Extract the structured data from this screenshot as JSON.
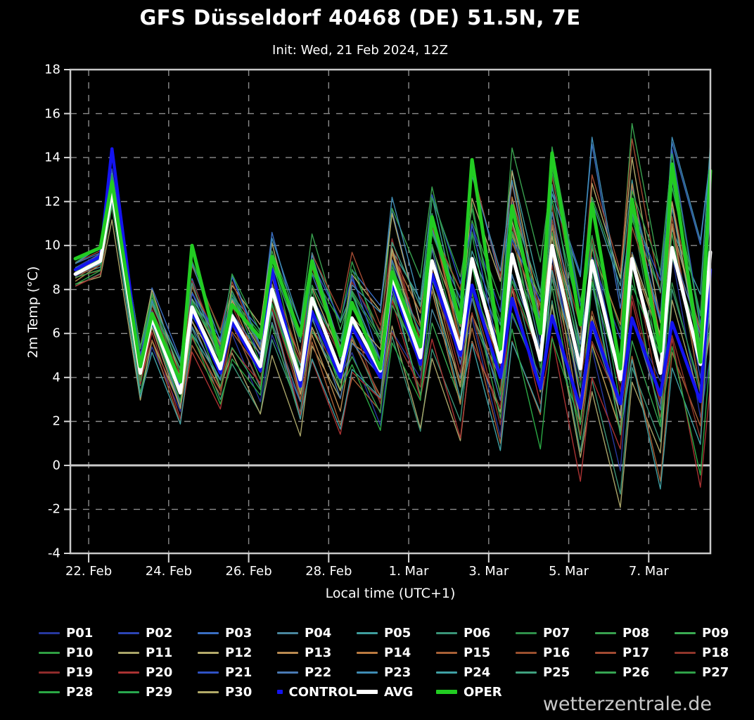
{
  "header": {
    "title": "GFS Düsseldorf 40468 (DE) 51.5N, 7E",
    "subtitle": "Init: Wed, 21 Feb 2024, 12Z"
  },
  "axes": {
    "y_label": "2m Temp (°C)",
    "x_label": "Local time (UTC+1)"
  },
  "watermark": "wetterzentrale.de",
  "colors": {
    "background": "#000000",
    "frame": "#c8c8c8",
    "grid": "#8c8c8c",
    "zero_line": "#c9c9c9",
    "tick": "#d8d8d8",
    "control": "#1414f0",
    "avg": "#ffffff",
    "oper": "#22cc22"
  },
  "legend": {
    "entries": [
      {
        "label": "P01",
        "color": "#26379e",
        "thick": false
      },
      {
        "label": "P02",
        "color": "#2c44b4",
        "thick": false
      },
      {
        "label": "P03",
        "color": "#3a6ec2",
        "thick": false
      },
      {
        "label": "P04",
        "color": "#49869e",
        "thick": false
      },
      {
        "label": "P05",
        "color": "#3f9e9e",
        "thick": false
      },
      {
        "label": "P06",
        "color": "#3a9478",
        "thick": false
      },
      {
        "label": "P07",
        "color": "#2f8f4a",
        "thick": false
      },
      {
        "label": "P08",
        "color": "#38a04e",
        "thick": false
      },
      {
        "label": "P09",
        "color": "#3aaa52",
        "thick": false
      },
      {
        "label": "P10",
        "color": "#2f9e42",
        "thick": false
      },
      {
        "label": "P11",
        "color": "#a9a468",
        "thick": false
      },
      {
        "label": "P12",
        "color": "#b4aa6a",
        "thick": false
      },
      {
        "label": "P13",
        "color": "#b98a50",
        "thick": false
      },
      {
        "label": "P14",
        "color": "#bb7a40",
        "thick": false
      },
      {
        "label": "P15",
        "color": "#a86036",
        "thick": false
      },
      {
        "label": "P16",
        "color": "#9a4f2e",
        "thick": false
      },
      {
        "label": "P17",
        "color": "#a14a32",
        "thick": false
      },
      {
        "label": "P18",
        "color": "#8f352a",
        "thick": false
      },
      {
        "label": "P19",
        "color": "#8f2b2b",
        "thick": false
      },
      {
        "label": "P20",
        "color": "#a93232",
        "thick": false
      },
      {
        "label": "P21",
        "color": "#2f52c4",
        "thick": false
      },
      {
        "label": "P22",
        "color": "#4a7ab4",
        "thick": false
      },
      {
        "label": "P23",
        "color": "#3f8cb4",
        "thick": false
      },
      {
        "label": "P24",
        "color": "#3fa0a4",
        "thick": false
      },
      {
        "label": "P25",
        "color": "#3fa07e",
        "thick": false
      },
      {
        "label": "P26",
        "color": "#36a452",
        "thick": false
      },
      {
        "label": "P27",
        "color": "#2fa048",
        "thick": false
      },
      {
        "label": "P28",
        "color": "#2aa844",
        "thick": false
      },
      {
        "label": "P29",
        "color": "#28a84e",
        "thick": false
      },
      {
        "label": "P30",
        "color": "#b2aa68",
        "thick": false
      },
      {
        "label": "CONTROL",
        "color": "#1414f0",
        "thick": true
      },
      {
        "label": "AVG",
        "color": "#ffffff",
        "thick": true
      },
      {
        "label": "OPER",
        "color": "#22cc22",
        "thick": true
      }
    ]
  },
  "chart_data": {
    "type": "line",
    "title": "GFS Düsseldorf 40468 (DE) 51.5N, 7E",
    "subtitle": "Init: Wed, 21 Feb 2024, 12Z",
    "xlabel": "Local time (UTC+1)",
    "ylabel": "2m Temp (°C)",
    "ylim": [
      -4,
      18
    ],
    "yticks": [
      18,
      16,
      14,
      12,
      10,
      8,
      6,
      4,
      2,
      0,
      -2,
      -4
    ],
    "zero_line": 0,
    "grid": true,
    "legend_position": "bottom",
    "xlim_hours": [
      0,
      384
    ],
    "xticks": [
      {
        "t": 11,
        "label": "22. Feb"
      },
      {
        "t": 59,
        "label": "24. Feb"
      },
      {
        "t": 107,
        "label": "26. Feb"
      },
      {
        "t": 155,
        "label": "28. Feb"
      },
      {
        "t": 203,
        "label": "1. Mar"
      },
      {
        "t": 251,
        "label": "3. Mar"
      },
      {
        "t": 299,
        "label": "5. Mar"
      },
      {
        "t": 347,
        "label": "7. Mar"
      }
    ],
    "x": [
      3,
      18,
      25,
      42,
      49,
      66,
      73,
      90,
      97,
      114,
      121,
      138,
      145,
      162,
      169,
      186,
      193,
      210,
      217,
      234,
      241,
      258,
      265,
      282,
      289,
      306,
      313,
      330,
      337,
      354,
      361,
      378,
      384
    ],
    "series": [
      {
        "name": "CONTROL",
        "color": "#1414f0",
        "width": 4.5,
        "values": [
          8.9,
          9.5,
          14.4,
          4.4,
          6.6,
          3.5,
          7.0,
          4.2,
          6.5,
          4.3,
          8.9,
          3.6,
          7.0,
          4.0,
          6.3,
          4.0,
          8.3,
          4.6,
          8.7,
          5.0,
          8.2,
          4.0,
          7.6,
          3.5,
          6.8,
          2.6,
          6.5,
          2.8,
          6.7,
          3.2,
          6.5,
          2.9,
          8.9
        ]
      },
      {
        "name": "AVG",
        "color": "#ffffff",
        "width": 5,
        "values": [
          8.7,
          9.3,
          12.5,
          4.2,
          6.7,
          3.3,
          7.2,
          4.4,
          6.8,
          4.5,
          8.0,
          3.9,
          7.6,
          4.3,
          6.7,
          4.3,
          8.6,
          4.9,
          9.3,
          5.3,
          9.4,
          4.7,
          9.6,
          4.8,
          10.0,
          4.4,
          9.3,
          3.9,
          9.4,
          4.2,
          9.9,
          4.6,
          9.7
        ]
      },
      {
        "name": "OPER",
        "color": "#22cc22",
        "width": 5,
        "values": [
          9.4,
          9.9,
          12.9,
          4.5,
          6.9,
          3.8,
          10.0,
          4.8,
          7.3,
          5.8,
          9.5,
          5.9,
          9.3,
          5.0,
          7.4,
          4.4,
          8.8,
          5.4,
          11.3,
          6.5,
          13.9,
          5.3,
          11.8,
          6.0,
          14.2,
          6.4,
          11.9,
          4.4,
          12.1,
          5.2,
          13.7,
          4.7,
          13.4
        ]
      }
    ],
    "member_model": {
      "base": "AVG",
      "spread": [
        0.4,
        0.5,
        0.9,
        1.0,
        1.2,
        1.2,
        1.5,
        1.4,
        1.7,
        1.6,
        2.0,
        1.9,
        2.2,
        2.1,
        2.4,
        2.3,
        2.7,
        2.6,
        3.0,
        2.9,
        3.3,
        3.1,
        3.6,
        3.4,
        3.9,
        3.7,
        4.2,
        3.9,
        4.4,
        4.1,
        4.5,
        4.2,
        4.5
      ]
    },
    "members": [
      {
        "name": "P01",
        "color": "#26379e",
        "u": -0.55,
        "p": 0.5,
        "w": 1.1,
        "a": 0.55
      },
      {
        "name": "P02",
        "color": "#2c44b4",
        "u": 0.25,
        "p": 1.3,
        "w": 0.9,
        "a": 0.5
      },
      {
        "name": "P03",
        "color": "#3a6ec2",
        "u": 0.85,
        "p": 2.2,
        "w": 1.2,
        "a": 0.45
      },
      {
        "name": "P04",
        "color": "#49869e",
        "u": -0.15,
        "p": 3.1,
        "w": 0.8,
        "a": 0.6
      },
      {
        "name": "P05",
        "color": "#3f9e9e",
        "u": 0.6,
        "p": 4.0,
        "w": 1.3,
        "a": 0.5
      },
      {
        "name": "P06",
        "color": "#3a9478",
        "u": -0.8,
        "p": 4.9,
        "w": 0.7,
        "a": 0.55
      },
      {
        "name": "P07",
        "color": "#2f8f4a",
        "u": 0.1,
        "p": 5.7,
        "w": 1.0,
        "a": 0.5
      },
      {
        "name": "P08",
        "color": "#38a04e",
        "u": 0.95,
        "p": 0.9,
        "w": 1.15,
        "a": 0.45
      },
      {
        "name": "P09",
        "color": "#3aaa52",
        "u": -0.35,
        "p": 1.8,
        "w": 0.85,
        "a": 0.6
      },
      {
        "name": "P10",
        "color": "#2f9e42",
        "u": 0.45,
        "p": 2.6,
        "w": 1.25,
        "a": 0.5
      },
      {
        "name": "P11",
        "color": "#a9a468",
        "u": -0.95,
        "p": 3.5,
        "w": 0.75,
        "a": 0.55
      },
      {
        "name": "P12",
        "color": "#b4aa6a",
        "u": 0.7,
        "p": 4.4,
        "w": 1.05,
        "a": 0.5
      },
      {
        "name": "P13",
        "color": "#b98a50",
        "u": -0.25,
        "p": 5.2,
        "w": 0.95,
        "a": 0.65
      },
      {
        "name": "P14",
        "color": "#bb7a40",
        "u": 0.35,
        "p": 6.0,
        "w": 1.2,
        "a": 0.45
      },
      {
        "name": "P15",
        "color": "#a86036",
        "u": -0.65,
        "p": 0.3,
        "w": 0.8,
        "a": 0.55
      },
      {
        "name": "P16",
        "color": "#9a4f2e",
        "u": 0.05,
        "p": 1.1,
        "w": 1.1,
        "a": 0.6
      },
      {
        "name": "P17",
        "color": "#a14a32",
        "u": 0.8,
        "p": 2.0,
        "w": 0.9,
        "a": 0.5
      },
      {
        "name": "P18",
        "color": "#8f352a",
        "u": -0.45,
        "p": 2.9,
        "w": 1.3,
        "a": 0.5
      },
      {
        "name": "P19",
        "color": "#8f2b2b",
        "u": 0.2,
        "p": 3.7,
        "w": 0.7,
        "a": 0.6
      },
      {
        "name": "P20",
        "color": "#a93232",
        "u": -0.9,
        "p": 4.6,
        "w": 1.0,
        "a": 0.5
      },
      {
        "name": "P21",
        "color": "#2f52c4",
        "u": 0.55,
        "p": 5.4,
        "w": 1.15,
        "a": 0.55
      },
      {
        "name": "P22",
        "color": "#4a7ab4",
        "u": -0.1,
        "p": 6.1,
        "w": 0.85,
        "a": 0.5
      },
      {
        "name": "P23",
        "color": "#3f8cb4",
        "u": 0.9,
        "p": 0.7,
        "w": 1.25,
        "a": 0.45
      },
      {
        "name": "P24",
        "color": "#3fa0a4",
        "u": -0.7,
        "p": 1.6,
        "w": 0.75,
        "a": 0.6
      },
      {
        "name": "P25",
        "color": "#3fa07e",
        "u": 0.4,
        "p": 2.4,
        "w": 1.05,
        "a": 0.5
      },
      {
        "name": "P26",
        "color": "#36a452",
        "u": -0.3,
        "p": 3.3,
        "w": 0.95,
        "a": 0.55
      },
      {
        "name": "P27",
        "color": "#2fa048",
        "u": 0.65,
        "p": 4.2,
        "w": 1.2,
        "a": 0.5
      },
      {
        "name": "P28",
        "color": "#2aa844",
        "u": -0.6,
        "p": 5.0,
        "w": 0.8,
        "a": 0.6
      },
      {
        "name": "P29",
        "color": "#28a84e",
        "u": 0.15,
        "p": 5.9,
        "w": 1.1,
        "a": 0.5
      },
      {
        "name": "P30",
        "color": "#b2aa68",
        "u": -0.05,
        "p": 0.1,
        "w": 0.9,
        "a": 0.55
      }
    ]
  }
}
